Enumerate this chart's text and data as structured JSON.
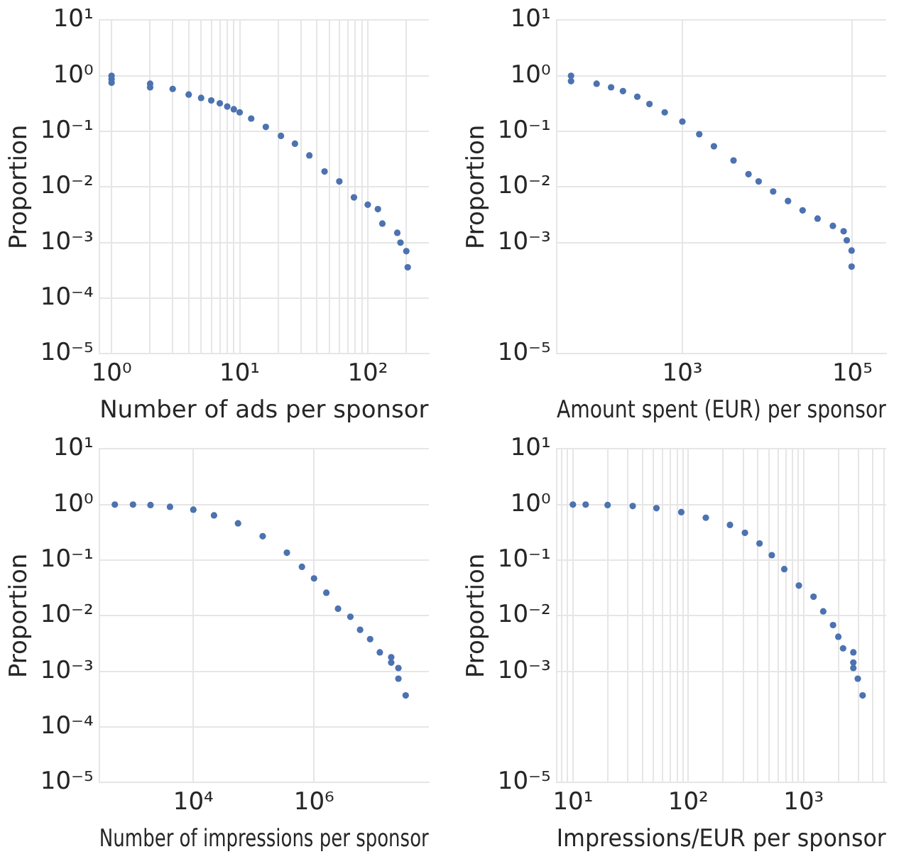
{
  "chart_data": [
    {
      "type": "scatter",
      "xlabel": "Number of ads per sponsor",
      "ylabel": "Proportion",
      "log": "xy",
      "grid": true,
      "marker": "circle",
      "xlim": [
        0.8,
        300
      ],
      "ylim": [
        1e-05,
        10
      ],
      "xticks": [
        {
          "value": 1,
          "label": "10⁰"
        },
        {
          "value": 2,
          "label": null
        },
        {
          "value": 3,
          "label": null
        },
        {
          "value": 4,
          "label": null
        },
        {
          "value": 5,
          "label": null
        },
        {
          "value": 6,
          "label": null
        },
        {
          "value": 7,
          "label": null
        },
        {
          "value": 8,
          "label": null
        },
        {
          "value": 9,
          "label": null
        },
        {
          "value": 10,
          "label": "10¹"
        },
        {
          "value": 20,
          "label": null
        },
        {
          "value": 30,
          "label": null
        },
        {
          "value": 40,
          "label": null
        },
        {
          "value": 50,
          "label": null
        },
        {
          "value": 60,
          "label": null
        },
        {
          "value": 70,
          "label": null
        },
        {
          "value": 80,
          "label": null
        },
        {
          "value": 90,
          "label": null
        },
        {
          "value": 100,
          "label": "10²"
        },
        {
          "value": 200,
          "label": null
        }
      ],
      "yticks": [
        {
          "value": 1e-05,
          "label": "10⁻⁵"
        },
        {
          "value": 0.0001,
          "label": "10⁻⁴"
        },
        {
          "value": 0.001,
          "label": "10⁻³"
        },
        {
          "value": 0.01,
          "label": "10⁻²"
        },
        {
          "value": 0.1,
          "label": "10⁻¹"
        },
        {
          "value": 1,
          "label": "10⁰"
        },
        {
          "value": 10,
          "label": "10¹"
        }
      ],
      "series": [
        {
          "color": "#4c72b0",
          "x": [
            1,
            1,
            1,
            2,
            2,
            3,
            4,
            5,
            6,
            7,
            8,
            9,
            10,
            12.3,
            16,
            21,
            27,
            35,
            46,
            60,
            78,
            100,
            120,
            130,
            170,
            180,
            200,
            205
          ],
          "values": [
            1,
            0.87,
            0.75,
            0.72,
            0.62,
            0.58,
            0.46,
            0.4,
            0.36,
            0.32,
            0.28,
            0.25,
            0.22,
            0.17,
            0.12,
            0.083,
            0.06,
            0.037,
            0.019,
            0.0126,
            0.0065,
            0.0048,
            0.004,
            0.0022,
            0.0015,
            0.001,
            0.0007,
            0.00036
          ]
        }
      ]
    },
    {
      "type": "scatter",
      "xlabel": "Amount spent (EUR) per sponsor",
      "ylabel": "Proportion",
      "log": "xy",
      "grid": true,
      "marker": "circle",
      "xlim": [
        33,
        250000
      ],
      "ylim": [
        1e-05,
        10
      ],
      "xticks": [
        {
          "value": 1000,
          "label": "10³"
        },
        {
          "value": 100000,
          "label": "10⁵"
        }
      ],
      "yticks": [
        {
          "value": 1e-05,
          "label": "10⁻⁵"
        },
        {
          "value": 0.001,
          "label": "10⁻³"
        },
        {
          "value": 0.01,
          "label": "10⁻²"
        },
        {
          "value": 0.1,
          "label": "10⁻¹"
        },
        {
          "value": 1,
          "label": "10⁰"
        },
        {
          "value": 10,
          "label": "10¹"
        }
      ],
      "series": [
        {
          "color": "#4c72b0",
          "x": [
            49,
            49,
            98,
            145,
            200,
            295,
            410,
            620,
            1000,
            1580,
            2350,
            4000,
            6000,
            7900,
            11700,
            17500,
            26000,
            39000,
            59000,
            79000,
            86000,
            98000,
            98000
          ],
          "values": [
            1,
            0.8,
            0.72,
            0.62,
            0.53,
            0.42,
            0.31,
            0.22,
            0.15,
            0.089,
            0.054,
            0.03,
            0.017,
            0.0126,
            0.0083,
            0.0056,
            0.0038,
            0.0027,
            0.002,
            0.0016,
            0.0011,
            0.00072,
            0.00037
          ]
        }
      ]
    },
    {
      "type": "scatter",
      "xlabel": "Number of impressions per sponsor",
      "ylabel": "Proportion",
      "log": "xy",
      "grid": true,
      "marker": "circle",
      "xlim": [
        275,
        80000000
      ],
      "ylim": [
        1e-05,
        10
      ],
      "xticks": [
        {
          "value": 10000,
          "label": "10⁴"
        },
        {
          "value": 1000000,
          "label": "10⁶"
        }
      ],
      "yticks": [
        {
          "value": 1e-05,
          "label": "10⁻⁵"
        },
        {
          "value": 0.0001,
          "label": "10⁻⁴"
        },
        {
          "value": 0.001,
          "label": "10⁻³"
        },
        {
          "value": 0.01,
          "label": "10⁻²"
        },
        {
          "value": 0.1,
          "label": "10⁻¹"
        },
        {
          "value": 1,
          "label": "10⁰"
        },
        {
          "value": 10,
          "label": "10¹"
        }
      ],
      "series": [
        {
          "color": "#4c72b0",
          "x": [
            500,
            1000,
            1950,
            4100,
            10000,
            22000,
            55000,
            141000,
            355000,
            630000,
            1000000,
            1600000,
            2500000,
            4000000,
            5800000,
            8500000,
            12300000,
            19000000,
            19000000,
            25000000,
            25000000,
            33000000
          ],
          "values": [
            1,
            1,
            0.98,
            0.91,
            0.81,
            0.64,
            0.46,
            0.27,
            0.136,
            0.076,
            0.047,
            0.026,
            0.0134,
            0.0096,
            0.0056,
            0.0038,
            0.0022,
            0.0018,
            0.00144,
            0.00115,
            0.00074,
            0.00037
          ]
        }
      ]
    },
    {
      "type": "scatter",
      "xlabel": "Impressions/EUR per sponsor",
      "ylabel": "Proportion",
      "log": "xy",
      "grid": true,
      "marker": "circle",
      "xlim": [
        7.2,
        5200
      ],
      "ylim": [
        1e-05,
        10
      ],
      "xticks": [
        {
          "value": 8,
          "label": null
        },
        {
          "value": 9,
          "label": null
        },
        {
          "value": 10,
          "label": "10¹"
        },
        {
          "value": 20,
          "label": null
        },
        {
          "value": 30,
          "label": null
        },
        {
          "value": 40,
          "label": null
        },
        {
          "value": 50,
          "label": null
        },
        {
          "value": 60,
          "label": null
        },
        {
          "value": 70,
          "label": null
        },
        {
          "value": 80,
          "label": null
        },
        {
          "value": 90,
          "label": null
        },
        {
          "value": 100,
          "label": "10²"
        },
        {
          "value": 200,
          "label": null
        },
        {
          "value": 300,
          "label": null
        },
        {
          "value": 400,
          "label": null
        },
        {
          "value": 500,
          "label": null
        },
        {
          "value": 600,
          "label": null
        },
        {
          "value": 700,
          "label": null
        },
        {
          "value": 800,
          "label": null
        },
        {
          "value": 900,
          "label": null
        },
        {
          "value": 1000,
          "label": "10³"
        },
        {
          "value": 2000,
          "label": null
        },
        {
          "value": 3000,
          "label": null
        },
        {
          "value": 4000,
          "label": null
        },
        {
          "value": 5000,
          "label": null
        }
      ],
      "yticks": [
        {
          "value": 1e-05,
          "label": "10⁻⁵"
        },
        {
          "value": 0.001,
          "label": "10⁻³"
        },
        {
          "value": 0.01,
          "label": "10⁻²"
        },
        {
          "value": 0.1,
          "label": "10⁻¹"
        },
        {
          "value": 1,
          "label": "10⁰"
        },
        {
          "value": 10,
          "label": "10¹"
        }
      ],
      "series": [
        {
          "color": "#4c72b0",
          "x": [
            10,
            12.9,
            20,
            33,
            53,
            87,
            142,
            230,
            310,
            415,
            530,
            680,
            910,
            1220,
            1480,
            1800,
            2000,
            2200,
            2700,
            2700,
            2700,
            2950,
            3250
          ],
          "values": [
            1,
            1,
            0.98,
            0.94,
            0.86,
            0.73,
            0.58,
            0.43,
            0.31,
            0.2,
            0.123,
            0.069,
            0.035,
            0.022,
            0.012,
            0.0068,
            0.0042,
            0.0026,
            0.0022,
            0.00144,
            0.00115,
            0.00074,
            0.00037
          ]
        }
      ]
    }
  ]
}
